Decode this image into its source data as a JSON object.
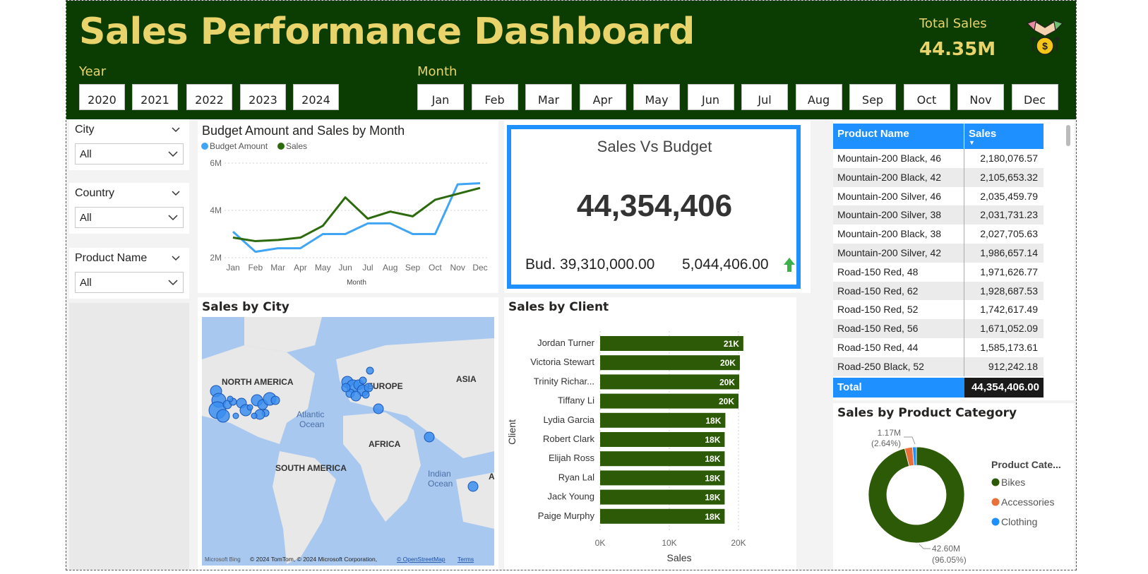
{
  "header": {
    "title": "Sales Performance Dashboard",
    "year_label": "Year",
    "years": [
      "2020",
      "2021",
      "2022",
      "2023",
      "2024"
    ],
    "month_label": "Month",
    "months": [
      "Jan",
      "Feb",
      "Mar",
      "Apr",
      "May",
      "Jun",
      "Jul",
      "Aug",
      "Sep",
      "Oct",
      "Nov",
      "Dec"
    ],
    "total_sales_label": "Total Sales",
    "total_sales_value": "44.35M",
    "icon": "handshake-money-icon"
  },
  "filters": [
    {
      "title": "City",
      "value": "All"
    },
    {
      "title": "Country",
      "value": "All"
    },
    {
      "title": "Product Name",
      "value": "All"
    }
  ],
  "line_chart": {
    "title": "Budget Amount and Sales by Month",
    "legend": [
      "Budget Amount",
      "Sales"
    ],
    "xlabel": "Month"
  },
  "kpi": {
    "title": "Sales Vs Budget",
    "value": "44,354,406",
    "budget": "Bud. 39,310,000.00",
    "variance": "5,044,406.00",
    "trend_icon": "arrow-up-icon"
  },
  "map": {
    "title": "Sales by City",
    "labels": [
      "NORTH AMERICA",
      "EUROPE",
      "ASIA",
      "Atlantic",
      "Ocean",
      "AFRICA",
      "SOUTH AMERICA",
      "Indian",
      "Ocean",
      "A"
    ],
    "attribution": "© 2024 TomTom, © 2024 Microsoft Corporation,",
    "osm_link": "© OpenStreetMap",
    "terms_link": "Terms",
    "logo": "Microsoft Bing"
  },
  "bar_chart": {
    "title": "Sales by Client",
    "ylabel": "Client",
    "xlabel": "Sales",
    "ticks": [
      "0K",
      "10K",
      "20K"
    ]
  },
  "table": {
    "col1": "Product Name",
    "col2": "Sales",
    "rows": [
      [
        "Mountain-200 Black, 46",
        "2,180,076.57"
      ],
      [
        "Mountain-200 Black, 42",
        "2,105,653.32"
      ],
      [
        "Mountain-200 Silver, 46",
        "2,035,459.79"
      ],
      [
        "Mountain-200 Silver, 38",
        "2,031,731.23"
      ],
      [
        "Mountain-200 Black, 38",
        "2,027,705.63"
      ],
      [
        "Mountain-200 Silver, 42",
        "1,986,657.14"
      ],
      [
        "Road-150 Red, 48",
        "1,971,626.77"
      ],
      [
        "Road-150 Red, 62",
        "1,928,687.53"
      ],
      [
        "Road-150 Red, 52",
        "1,742,617.49"
      ],
      [
        "Road-150 Red, 56",
        "1,671,052.09"
      ],
      [
        "Road-150 Red, 44",
        "1,585,173.61"
      ],
      [
        "Road-250 Black, 52",
        "912,242.18"
      ]
    ],
    "total_label": "Total",
    "total_value": "44,354,406.00"
  },
  "donut": {
    "title": "Sales by Product Category",
    "legend_title": "Product Cate...",
    "small_label_1": "1.17M",
    "small_label_2": "(2.64%)",
    "big_label_1": "42.60M",
    "big_label_2": "(96.05%)"
  },
  "chart_data": [
    {
      "type": "line",
      "title": "Budget Amount and Sales by Month",
      "xlabel": "Month",
      "ylabel": "",
      "categories": [
        "Jan",
        "Feb",
        "Mar",
        "Apr",
        "May",
        "Jun",
        "Jul",
        "Aug",
        "Sep",
        "Oct",
        "Nov",
        "Dec"
      ],
      "ylim": [
        2000000,
        6000000
      ],
      "yticks": [
        "2M",
        "4M",
        "6M"
      ],
      "series": [
        {
          "name": "Budget Amount",
          "color": "#41a5f5",
          "values": [
            3100000,
            2250000,
            2400000,
            2400000,
            3000000,
            3000000,
            3450000,
            3450000,
            3000000,
            3000000,
            5100000,
            5150000
          ]
        },
        {
          "name": "Sales",
          "color": "#2d6a0e",
          "values": [
            2850000,
            2700000,
            2750000,
            2850000,
            3350000,
            4550000,
            3650000,
            3950000,
            3750000,
            4450000,
            4700000,
            4950000
          ]
        }
      ],
      "legend": "top-left",
      "grid": true
    },
    {
      "type": "bar",
      "title": "Sales by Client",
      "xlabel": "Sales",
      "ylabel": "Client",
      "categories": [
        "Jordan Turner",
        "Victoria Stewart",
        "Trinity Richar...",
        "Tiffany Li",
        "Lydia Garcia",
        "Robert Clark",
        "Elijah Ross",
        "Ryan Lal",
        "Jack Young",
        "Paige Murphy"
      ],
      "values": [
        20700,
        20200,
        20100,
        20000,
        18100,
        18000,
        18000,
        18000,
        18000,
        18000
      ],
      "data_labels": [
        "21K",
        "20K",
        "20K",
        "20K",
        "18K",
        "18K",
        "18K",
        "18K",
        "18K",
        "18K"
      ],
      "xlim": [
        0,
        20000
      ],
      "xticks": [
        "0K",
        "10K",
        "20K"
      ],
      "color": "#2d5a06",
      "grid": true
    },
    {
      "type": "pie",
      "title": "Sales by Product Category",
      "categories": [
        "Bikes",
        "Accessories",
        "Clothing"
      ],
      "values": [
        42600000,
        1170000,
        580000
      ],
      "percent": [
        96.05,
        2.64,
        1.31
      ],
      "colors": [
        "#2d5a06",
        "#e8703a",
        "#1e90ff"
      ],
      "legend": "right"
    }
  ]
}
